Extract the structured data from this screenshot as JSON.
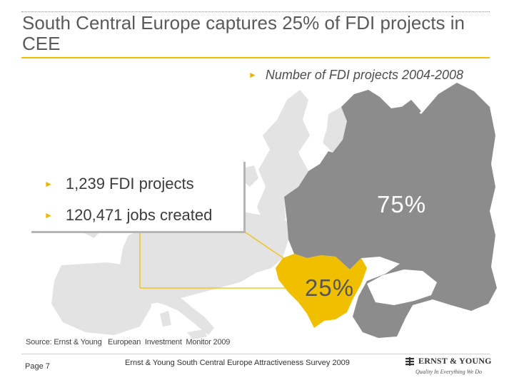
{
  "title": "South Central Europe captures 25% of FDI projects in CEE",
  "legend": {
    "label": "Number of FDI projects 2004-2008",
    "bullet": "►"
  },
  "stats": [
    {
      "bullet": "►",
      "text": "1,239 FDI projects"
    },
    {
      "bullet": "►",
      "text": "120,471 jobs created"
    }
  ],
  "regions": {
    "rest_of_cee": {
      "label": "75%",
      "share_percent": 75,
      "color": "#8c8c8c"
    },
    "south_central_europe": {
      "label": "25%",
      "share_percent": 25,
      "color": "#f0c000"
    }
  },
  "colors": {
    "accent": "#f0c000",
    "other_europe": "#e3e3e3",
    "cee": "#8c8c8c",
    "sce": "#f0c000"
  },
  "source": "Source: Ernst & Young   European  Investment  Monitor 2009",
  "footer": {
    "page": "Page 7",
    "text": "Ernst & Young South Central Europe Attractiveness Survey 2009"
  },
  "logo": {
    "name": "ERNST & YOUNG",
    "tagline": "Quality In Everything We Do"
  }
}
